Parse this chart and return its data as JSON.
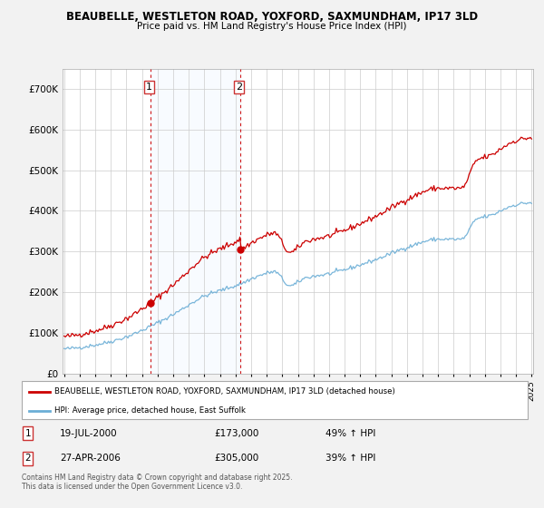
{
  "title1": "BEAUBELLE, WESTLETON ROAD, YOXFORD, SAXMUNDHAM, IP17 3LD",
  "title2": "Price paid vs. HM Land Registry's House Price Index (HPI)",
  "ylim": [
    0,
    750000
  ],
  "yticks": [
    0,
    100000,
    200000,
    300000,
    400000,
    500000,
    600000,
    700000
  ],
  "ytick_labels": [
    "£0",
    "£100K",
    "£200K",
    "£300K",
    "£400K",
    "£500K",
    "£600K",
    "£700K"
  ],
  "x_start_year": 1995,
  "x_end_year": 2025,
  "sale1_year": 2000.54,
  "sale1_price": 173000,
  "sale2_year": 2006.33,
  "sale2_price": 305000,
  "sale1_date": "19-JUL-2000",
  "sale1_pct": "49% ↑ HPI",
  "sale2_date": "27-APR-2006",
  "sale2_pct": "39% ↑ HPI",
  "line_color_sale": "#cc0000",
  "line_color_hpi": "#6baed6",
  "plot_bg_color": "#ffffff",
  "grid_color": "#cccccc",
  "shade_color": "#ddeeff",
  "legend_label_sale": "BEAUBELLE, WESTLETON ROAD, YOXFORD, SAXMUNDHAM, IP17 3LD (detached house)",
  "legend_label_hpi": "HPI: Average price, detached house, East Suffolk",
  "footer": "Contains HM Land Registry data © Crown copyright and database right 2025.\nThis data is licensed under the Open Government Licence v3.0."
}
